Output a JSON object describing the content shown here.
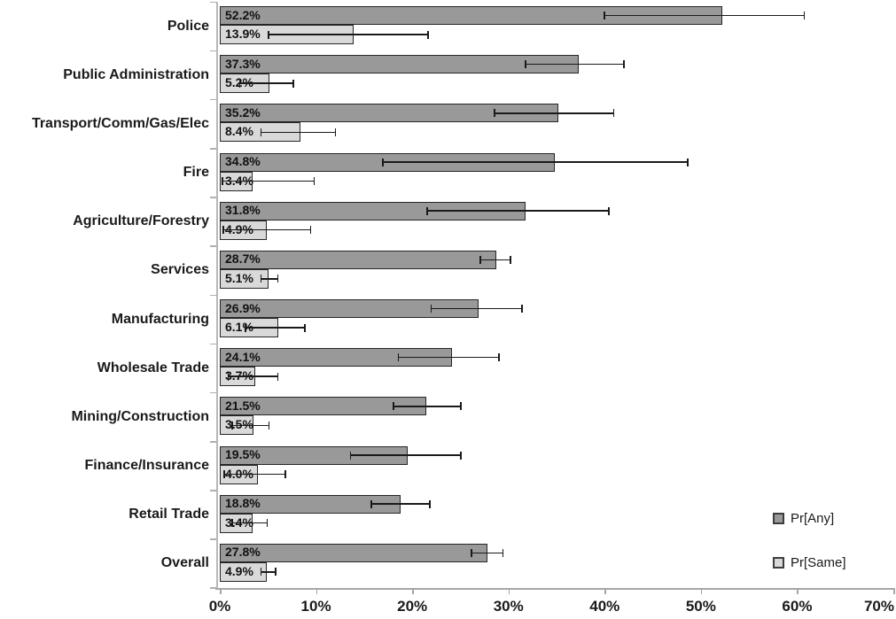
{
  "chart_data": {
    "type": "bar",
    "orientation": "horizontal",
    "title": "",
    "xlabel": "",
    "ylabel": "",
    "xlim": [
      0,
      70
    ],
    "x_tick_labels": [
      "0%",
      "10%",
      "20%",
      "30%",
      "40%",
      "50%",
      "60%",
      "70%"
    ],
    "x_tick_values": [
      0,
      10,
      20,
      30,
      40,
      50,
      60,
      70
    ],
    "grid": false,
    "legend_position": "right",
    "error_bars": true,
    "categories": [
      "Police",
      "Public Administration",
      "Transport/Comm/Gas/Elec",
      "Fire",
      "Agriculture/Forestry",
      "Services",
      "Manufacturing",
      "Wholesale Trade",
      "Mining/Construction",
      "Finance/Insurance",
      "Retail Trade",
      "Overall"
    ],
    "series": [
      {
        "name": "Pr[Any]",
        "color": "#999999",
        "values": [
          52.2,
          37.3,
          35.2,
          34.8,
          31.8,
          28.7,
          26.9,
          24.1,
          21.5,
          19.5,
          18.8,
          27.8
        ],
        "labels": [
          "52.2%",
          "37.3%",
          "35.2%",
          "34.8%",
          "31.8%",
          "28.7%",
          "26.9%",
          "24.1%",
          "21.5%",
          "19.5%",
          "18.8%",
          "27.8%"
        ],
        "err_lo": [
          39.9,
          31.7,
          28.5,
          16.9,
          21.5,
          27.0,
          21.9,
          18.5,
          18.0,
          13.5,
          15.7,
          26.1
        ],
        "err_hi": [
          60.8,
          42.1,
          41.0,
          48.7,
          40.5,
          30.3,
          31.5,
          29.1,
          25.1,
          25.1,
          21.9,
          29.5
        ]
      },
      {
        "name": "Pr[Same]",
        "color": "#d9d9d9",
        "values": [
          13.9,
          5.2,
          8.4,
          3.4,
          4.9,
          5.1,
          6.1,
          3.7,
          3.5,
          4.0,
          3.4,
          4.9
        ],
        "labels": [
          "13.9%",
          "5.2%",
          "8.4%",
          "3.4%",
          "4.9%",
          "5.1%",
          "6.1%",
          "3.7%",
          "3.5%",
          "4.0%",
          "3.4%",
          "4.9%"
        ],
        "err_lo": [
          5.0,
          2.0,
          4.2,
          0.2,
          0.3,
          4.2,
          2.6,
          0.8,
          1.2,
          0.4,
          1.2,
          4.2
        ],
        "err_hi": [
          21.7,
          7.7,
          12.1,
          9.9,
          9.5,
          6.1,
          8.9,
          6.1,
          5.2,
          6.9,
          5.0,
          5.9
        ]
      }
    ]
  },
  "colors": {
    "bar_any": "#999999",
    "bar_same": "#d9d9d9",
    "bar_border": "#262626",
    "error_bar": "#1a1a1a",
    "axis": "#a6a6a6",
    "text": "#1a1a1a"
  }
}
